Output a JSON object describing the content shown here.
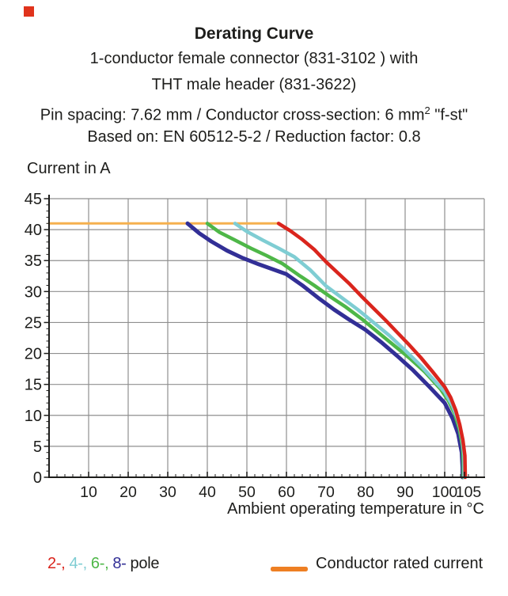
{
  "page": {
    "background": "#ffffff",
    "text_color": "#1d1d1b"
  },
  "decorations": {
    "red_square_color": "#e0331c"
  },
  "header": {
    "title": "Derating Curve",
    "line2": "1-conductor female connector (831-3102 ) with",
    "line3": "THT male header (831-3622)",
    "line4_pre": "Pin spacing: 7.62 mm / Conductor cross-section: 6 mm",
    "line4_sup": "2",
    "line4_post": " \"f-st\"",
    "line5": "Based on: EN 60512-5-2 / Reduction factor: 0.8"
  },
  "chart_data": {
    "type": "line",
    "title": "Derating Curve",
    "ylabel": "Current in A",
    "xlabel": "Ambient operating temperature in °C",
    "x_range": [
      0,
      110
    ],
    "y_range": [
      0,
      45
    ],
    "x_major_ticks": [
      10,
      20,
      30,
      40,
      50,
      60,
      70,
      80,
      90,
      100,
      105
    ],
    "x_gridlines": [
      10,
      20,
      30,
      40,
      50,
      60,
      70,
      80,
      90,
      100,
      110
    ],
    "x_minor_step": 2,
    "y_major_ticks": [
      0,
      5,
      10,
      15,
      20,
      25,
      30,
      35,
      40,
      45
    ],
    "y_gridlines": [
      5,
      10,
      15,
      20,
      25,
      30,
      35,
      40,
      45
    ],
    "y_minor_step": 1,
    "grid_on": true,
    "grid_color": "#8f8f8f",
    "axis_color": "#1d1d1b",
    "series": [
      {
        "name": "conductor-rated-current",
        "label": "Conductor rated current",
        "color": "#f5b04e",
        "width": 3,
        "points": [
          [
            0,
            41
          ],
          [
            58,
            41
          ]
        ]
      },
      {
        "name": "8-pole",
        "label": "8-",
        "color": "#322f96",
        "width": 5,
        "points": [
          [
            35,
            41
          ],
          [
            38,
            39.4
          ],
          [
            41,
            38.1
          ],
          [
            45,
            36.6
          ],
          [
            49,
            35.4
          ],
          [
            53,
            34.4
          ],
          [
            57,
            33.5
          ],
          [
            60,
            32.8
          ],
          [
            64,
            31
          ],
          [
            68,
            29
          ],
          [
            72,
            27.1
          ],
          [
            76,
            25.4
          ],
          [
            80,
            23.8
          ],
          [
            84,
            21.8
          ],
          [
            88,
            19.6
          ],
          [
            92,
            17.3
          ],
          [
            96,
            14.7
          ],
          [
            100,
            12
          ],
          [
            102,
            9.5
          ],
          [
            103.4,
            7
          ],
          [
            104.3,
            4
          ],
          [
            104.5,
            1.5
          ],
          [
            104.5,
            0
          ]
        ]
      },
      {
        "name": "6-pole",
        "label": "6-",
        "color": "#4eb748",
        "width": 4.5,
        "points": [
          [
            40,
            41
          ],
          [
            43,
            39.6
          ],
          [
            47,
            38.3
          ],
          [
            51,
            37
          ],
          [
            55,
            35.8
          ],
          [
            59,
            34.5
          ],
          [
            63,
            32.7
          ],
          [
            67,
            31
          ],
          [
            71,
            29.2
          ],
          [
            75,
            27.5
          ],
          [
            79,
            25.6
          ],
          [
            83,
            23.5
          ],
          [
            87,
            21.4
          ],
          [
            91,
            19.3
          ],
          [
            95,
            17
          ],
          [
            99,
            14.2
          ],
          [
            101,
            12.3
          ],
          [
            102.5,
            10.3
          ],
          [
            103.7,
            7.8
          ],
          [
            104.5,
            5
          ],
          [
            104.7,
            2.5
          ],
          [
            104.7,
            0
          ]
        ]
      },
      {
        "name": "4-pole",
        "label": "4-",
        "color": "#7fcdd3",
        "width": 4.5,
        "points": [
          [
            47,
            41
          ],
          [
            50,
            39.7
          ],
          [
            54,
            38.3
          ],
          [
            58,
            37
          ],
          [
            62,
            35.6
          ],
          [
            66,
            33.5
          ],
          [
            70,
            30.9
          ],
          [
            74,
            29
          ],
          [
            78,
            27.1
          ],
          [
            82,
            25
          ],
          [
            86,
            22.9
          ],
          [
            90,
            20.5
          ],
          [
            94,
            18
          ],
          [
            98,
            15.2
          ],
          [
            100,
            13.8
          ],
          [
            102,
            11.5
          ],
          [
            103.5,
            9
          ],
          [
            104.4,
            6.3
          ],
          [
            104.9,
            3.5
          ],
          [
            104.9,
            0
          ]
        ]
      },
      {
        "name": "2-pole",
        "label": "2-",
        "color": "#da251d",
        "width": 4.5,
        "points": [
          [
            58,
            41
          ],
          [
            61,
            39.8
          ],
          [
            64,
            38.4
          ],
          [
            67,
            36.8
          ],
          [
            70,
            34.8
          ],
          [
            73,
            33
          ],
          [
            76,
            31.2
          ],
          [
            79,
            29.2
          ],
          [
            82,
            27.3
          ],
          [
            85,
            25.4
          ],
          [
            88,
            23.4
          ],
          [
            91,
            21.4
          ],
          [
            94,
            19.3
          ],
          [
            97,
            17
          ],
          [
            100,
            14.6
          ],
          [
            101.5,
            12.9
          ],
          [
            102.8,
            10.8
          ],
          [
            103.8,
            8.5
          ],
          [
            104.6,
            6
          ],
          [
            105.1,
            3.5
          ],
          [
            105.2,
            0
          ]
        ]
      }
    ],
    "rated_current_value": 41,
    "legend_position": "bottom"
  },
  "legend": {
    "pole_items": [
      {
        "label": "2-,",
        "color": "#da251d"
      },
      {
        "label": "4-,",
        "color": "#7fcdd3"
      },
      {
        "label": "6-,",
        "color": "#4eb748"
      },
      {
        "label": "8-",
        "color": "#322f96"
      }
    ],
    "pole_suffix": "pole",
    "rated_label": "Conductor rated current",
    "rated_swatch_color": "#ee7f23"
  }
}
